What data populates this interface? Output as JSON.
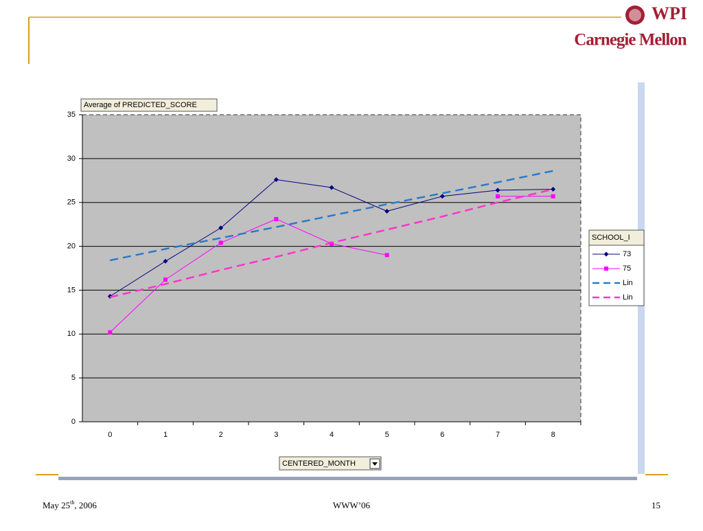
{
  "logo": {
    "top": "WPI",
    "bottom": "Carnegie Mellon"
  },
  "footer": {
    "date": [
      "May 25",
      "th",
      ", 2006"
    ],
    "center": "WWW’06",
    "page": "15"
  },
  "chart_data": {
    "type": "line",
    "y_label": "Average of PREDICTED_SCORE",
    "x_label": "CENTERED_MONTH",
    "legend_title": "SCHOOL_I",
    "legend": "right",
    "grid": true,
    "categories": [
      "0",
      "1",
      "2",
      "3",
      "4",
      "5",
      "6",
      "7",
      "8"
    ],
    "ylim": [
      0,
      35
    ],
    "yticks": [
      0,
      5,
      10,
      15,
      20,
      25,
      30,
      35
    ],
    "series": [
      {
        "name": "73",
        "color": "#000080",
        "marker": "diamond",
        "dash": "none",
        "values": [
          14.3,
          18.3,
          22.1,
          27.6,
          26.7,
          24.0,
          25.7,
          26.4,
          26.5
        ]
      },
      {
        "name": "75",
        "color": "#ff00ff",
        "marker": "square",
        "dash": "none",
        "values": [
          10.2,
          16.2,
          20.4,
          23.1,
          20.3,
          19.0,
          null,
          25.7,
          25.7
        ]
      },
      {
        "name": "Lin",
        "color": "#2a7ac8",
        "marker": "none",
        "dash": "dashed",
        "values": [
          18.4,
          19.7,
          20.95,
          22.2,
          23.5,
          24.8,
          26.05,
          27.3,
          28.6
        ]
      },
      {
        "name": "Lin",
        "color": "#ff33cc",
        "marker": "none",
        "dash": "dashed",
        "values": [
          14.2,
          15.7,
          17.3,
          18.8,
          20.4,
          21.9,
          23.4,
          25.0,
          26.5
        ]
      }
    ]
  }
}
